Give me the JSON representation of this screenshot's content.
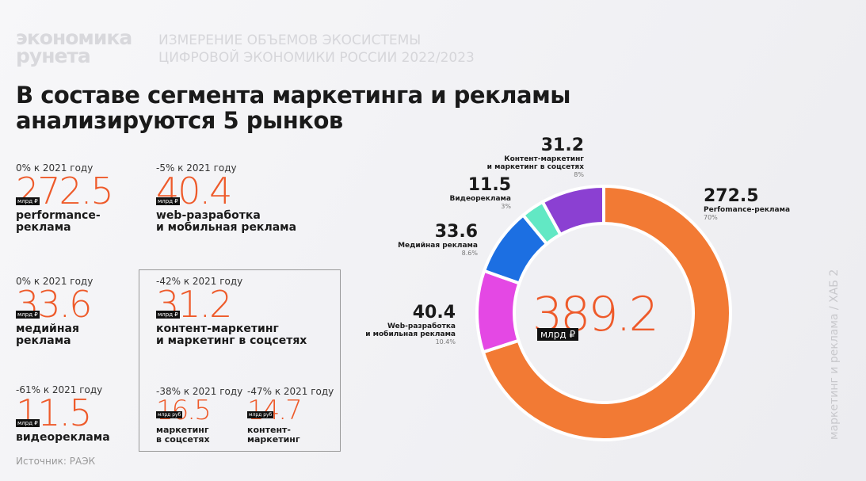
{
  "header": {
    "logo": "экономика\nрунета",
    "subtitle": "ИЗМЕРЕНИЕ ОБЪЕМОВ ЭКОСИСТЕМЫ\nЦИФРОВОЙ ЭКОНОМИКИ РОССИИ 2022/2023",
    "title": "В составе сегмента маркетинга и рекламы\nанализируются 5 рынков"
  },
  "cards": [
    {
      "change": "0% к 2021 году",
      "value": 272.5,
      "unit": "млрд ₽",
      "name": "performance-\nреклама"
    },
    {
      "change": "-5% к 2021 году",
      "value": 40.4,
      "unit": "млрд ₽",
      "name": "web-разработка\nи мобильная реклама"
    },
    {
      "change": "0% к 2021 году",
      "value": 33.6,
      "unit": "млрд ₽",
      "name": "медийная\nреклама"
    },
    {
      "change": "-42% к 2021 году",
      "value": 31.2,
      "unit": "млрд ₽",
      "name": "контент-маркетинг\nи маркетинг в соцсетях"
    },
    {
      "change": "-61% к 2021 году",
      "value": 11.5,
      "unit": "млрд ₽",
      "name": "видеореклама"
    },
    {
      "change": "-38% к 2021 году",
      "value": 16.5,
      "unit": "млрд руб",
      "name": "маркетинг\nв соцсетях"
    },
    {
      "change": "-47% к 2021 году",
      "value": 14.7,
      "unit": "млрд руб",
      "name": "контент-\nмаркетинг"
    }
  ],
  "source": "Источник: РАЭК",
  "side": "маркетинг и реклама / ХАБ 2",
  "chart_data": {
    "type": "donut",
    "categories": [
      "Perfomance-реклама",
      "Web-разработка\nи мобильная реклама",
      "Медийная реклама",
      "Видеореклама",
      "Контент-маркетинг\nи маркетинг в соцсетях"
    ],
    "values": [
      272.5,
      40.4,
      33.6,
      11.5,
      31.2
    ],
    "share_labels": [
      "70%",
      "10.4%",
      "8.6%",
      "3%",
      "8%"
    ],
    "colors": [
      "#f27a34",
      "#e448e4",
      "#1c6fe2",
      "#62e8c4",
      "#8b40d2"
    ],
    "total": 389.2,
    "total_unit": "млрд ₽"
  }
}
